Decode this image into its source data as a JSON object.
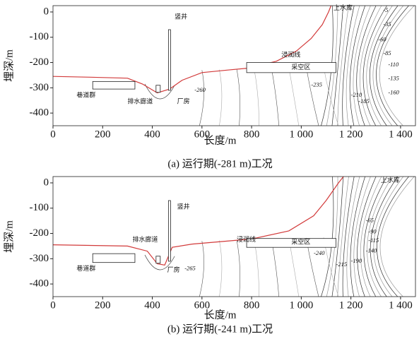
{
  "chart_data": [
    {
      "type": "contour",
      "xlabel": "长度/m",
      "ylabel": "埋深/m",
      "caption": "(a) 运行期(-281 m)工况",
      "xlim": [
        0,
        1460
      ],
      "ylim": [
        -450,
        25
      ],
      "xticks": [
        0,
        200,
        400,
        600,
        800,
        {
          "value": 1000,
          "label": "1 000"
        },
        {
          "value": 1200,
          "label": "1 200"
        },
        {
          "value": 1400,
          "label": "1 400"
        }
      ],
      "yticks": [
        0,
        -100,
        -200,
        -300,
        -400
      ],
      "annotations": [
        "上水库",
        "竖井",
        "浸润线",
        "采空区",
        "巷道群",
        "排水廊道",
        "厂房"
      ],
      "contour_levels": [
        -5,
        -35,
        -60,
        -85,
        -110,
        -135,
        -160,
        -185,
        -210,
        -235,
        -260
      ],
      "line_color": "#d23a3a"
    },
    {
      "type": "contour",
      "xlabel": "长度/m",
      "ylabel": "埋深/m",
      "caption": "(b) 运行期(-241 m)工况",
      "xlim": [
        0,
        1460
      ],
      "ylim": [
        -450,
        25
      ],
      "xticks": [
        0,
        200,
        400,
        600,
        800,
        {
          "value": 1000,
          "label": "1 000"
        },
        {
          "value": 1200,
          "label": "1 200"
        },
        {
          "value": 1400,
          "label": "1 400"
        }
      ],
      "yticks": [
        0,
        -100,
        -200,
        -300,
        -400
      ],
      "annotations": [
        "上水库",
        "竖井",
        "排水廊道",
        "浸润线",
        "采空区",
        "巷道群",
        "厂房"
      ],
      "contour_levels": [
        -65,
        -90,
        -115,
        -140,
        -190,
        -215,
        -240,
        -265
      ],
      "line_color": "#d23a3a"
    }
  ]
}
